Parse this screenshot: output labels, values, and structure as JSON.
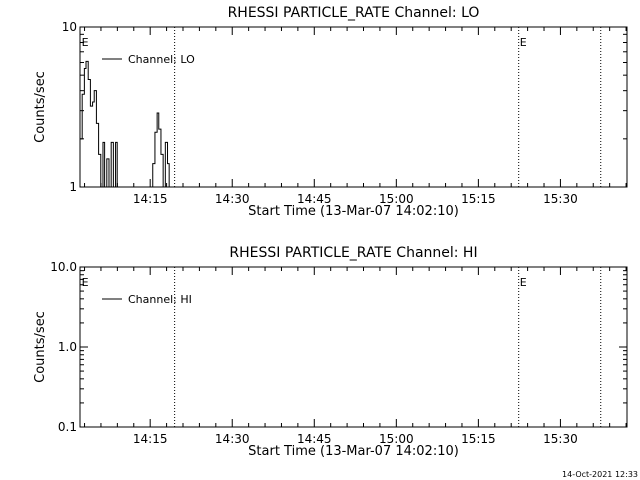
{
  "footer_timestamp": "14-Oct-2021 12:33",
  "chart_data": [
    {
      "type": "line",
      "title": "RHESSI PARTICLE_RATE Channel: LO",
      "xlabel": "Start Time (13-Mar-07 14:02:10)",
      "ylabel": "Counts/sec",
      "yscale": "log",
      "ylim": [
        1,
        10
      ],
      "y_ticks": [
        {
          "value": 1,
          "label": "1"
        },
        {
          "value": 10,
          "label": "10"
        }
      ],
      "x_unit": "minutes after 14:02:10",
      "xlim": [
        0,
        100
      ],
      "x_ticks": [
        {
          "value": 12.83,
          "label": "14:15"
        },
        {
          "value": 27.83,
          "label": "14:30"
        },
        {
          "value": 42.83,
          "label": "14:45"
        },
        {
          "value": 57.83,
          "label": "15:00"
        },
        {
          "value": 72.83,
          "label": "15:15"
        },
        {
          "value": 87.83,
          "label": "15:30"
        }
      ],
      "vlines": [
        17.3,
        80.2,
        95.2
      ],
      "markers": [
        {
          "x": 0.3,
          "label": "E"
        },
        {
          "x": 80.4,
          "label": "E"
        }
      ],
      "legend": {
        "position": "top-left",
        "entries": [
          "Channel: LO"
        ]
      },
      "series": [
        {
          "name": "Channel: LO",
          "x": [
            0.0,
            0.4,
            0.8,
            1.1,
            1.5,
            1.9,
            2.3,
            2.6,
            3.0,
            3.4,
            3.8,
            4.2,
            4.5,
            4.9,
            5.3,
            5.7,
            6.1,
            6.5,
            6.8,
            7.2,
            7.6,
            8.0,
            8.4,
            12.9,
            13.3,
            13.7,
            14.1,
            14.4,
            14.8,
            15.2,
            15.6,
            16.0,
            16.3,
            16.7,
            17.1
          ],
          "values": [
            2.0,
            3.8,
            5.5,
            6.1,
            4.7,
            3.2,
            3.4,
            4.0,
            2.5,
            1.6,
            1.0,
            1.9,
            1.0,
            1.5,
            1.0,
            1.9,
            1.0,
            1.9,
            1.0,
            1.0,
            1.0,
            1.0,
            1.0,
            1.0,
            1.4,
            2.2,
            2.9,
            2.3,
            1.6,
            1.0,
            1.9,
            1.4,
            1.0,
            1.0,
            1.0
          ]
        }
      ]
    },
    {
      "type": "line",
      "title": "RHESSI PARTICLE_RATE Channel: HI",
      "xlabel": "Start Time (13-Mar-07 14:02:10)",
      "ylabel": "Counts/sec",
      "yscale": "log",
      "ylim": [
        0.1,
        10
      ],
      "y_ticks": [
        {
          "value": 0.1,
          "label": "0.1"
        },
        {
          "value": 1,
          "label": "1.0"
        },
        {
          "value": 10,
          "label": "10.0"
        }
      ],
      "x_unit": "minutes after 14:02:10",
      "xlim": [
        0,
        100
      ],
      "x_ticks": [
        {
          "value": 12.83,
          "label": "14:15"
        },
        {
          "value": 27.83,
          "label": "14:30"
        },
        {
          "value": 42.83,
          "label": "14:45"
        },
        {
          "value": 57.83,
          "label": "15:00"
        },
        {
          "value": 72.83,
          "label": "15:15"
        },
        {
          "value": 87.83,
          "label": "15:30"
        }
      ],
      "vlines": [
        17.3,
        80.2,
        95.2
      ],
      "markers": [
        {
          "x": 0.3,
          "label": "E"
        },
        {
          "x": 80.4,
          "label": "E"
        }
      ],
      "legend": {
        "position": "top-left",
        "entries": [
          "Channel: HI"
        ]
      },
      "series": [
        {
          "name": "Channel: HI",
          "x": [],
          "values": []
        }
      ]
    }
  ]
}
